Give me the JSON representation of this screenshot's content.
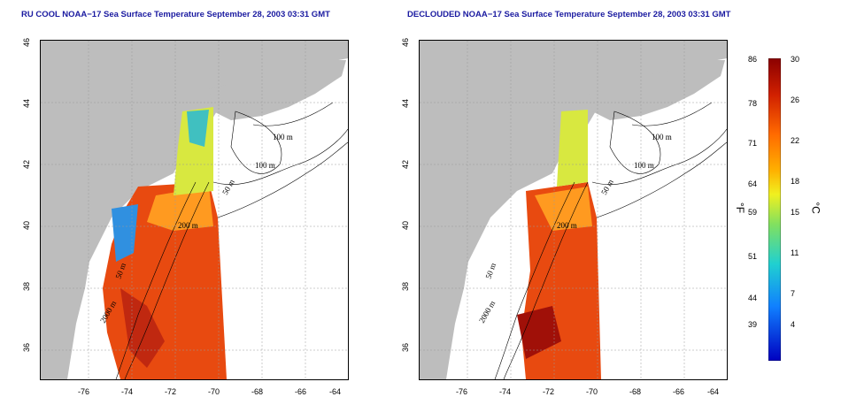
{
  "maps": [
    {
      "title": "RU COOL NOAA−17 Sea Surface Temperature September 28, 2003 03:31 GMT",
      "contours": [
        "100 m",
        "100 m",
        "50 m",
        "200 m",
        "50 m",
        "2000 m"
      ]
    },
    {
      "title": "DECLOUDED NOAA−17 Sea Surface Temperature September 28, 2003 03:31 GMT",
      "contours": [
        "100 m",
        "100 m",
        "50 m",
        "200 m",
        "50 m",
        "2000 m"
      ]
    }
  ],
  "axes": {
    "lat_ticks": [
      "46",
      "44",
      "42",
      "40",
      "38",
      "36"
    ],
    "lon_ticks": [
      "-76",
      "-74",
      "-72",
      "-70",
      "-68",
      "-66",
      "-64"
    ]
  },
  "colorbar": {
    "fahrenheit_ticks": [
      "86",
      "78",
      "71",
      "64",
      "59",
      "51",
      "44",
      "39"
    ],
    "celsius_ticks": [
      "30",
      "26",
      "22",
      "18",
      "15",
      "11",
      "7",
      "4"
    ],
    "fahrenheit_unit": "°F",
    "celsius_unit": "°C",
    "colors": [
      "#8b0000",
      "#d02000",
      "#ff6a00",
      "#ffb000",
      "#f0f020",
      "#80e060",
      "#20d0d0",
      "#1080ff",
      "#0000c0"
    ]
  },
  "colors": {
    "land": "#bdbdbd",
    "ocean": "#ffffff",
    "title": "#1a1aa0"
  }
}
